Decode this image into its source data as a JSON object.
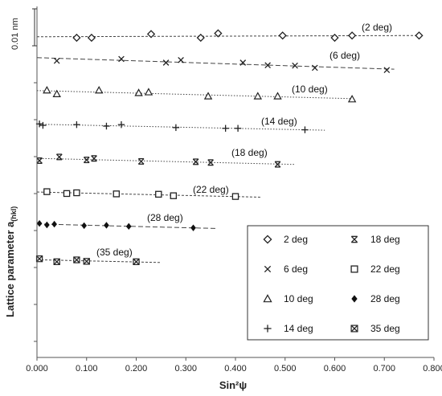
{
  "chart_data": {
    "type": "scatter",
    "xlabel": "Sin²ψ",
    "ylabel_main": "Lattice parameter a",
    "ylabel_sub": "(hkl)",
    "y_scale_label": "0.01 nm",
    "xlim": [
      0,
      0.8
    ],
    "x_ticks": [
      "0.000",
      "0.100",
      "0.200",
      "0.300",
      "0.400",
      "0.500",
      "0.600",
      "0.700",
      "0.800"
    ],
    "legend_position": "bottom-right",
    "series": [
      {
        "name": "2 deg",
        "label": "(2 deg)",
        "marker": "diamond",
        "line": "dashed-fine",
        "points": [
          [
            0.08,
            0
          ],
          [
            0.11,
            0
          ],
          [
            0.23,
            0.1
          ],
          [
            0.33,
            0
          ],
          [
            0.365,
            0.12
          ],
          [
            0.495,
            0.06
          ],
          [
            0.6,
            0
          ],
          [
            0.635,
            0.06
          ],
          [
            0.77,
            0.06
          ]
        ]
      },
      {
        "name": "6 deg",
        "label": "(6 deg)",
        "marker": "x",
        "line": "dashed",
        "points": [
          [
            0.04,
            0.05
          ],
          [
            0.17,
            0.1
          ],
          [
            0.26,
            0
          ],
          [
            0.29,
            0.07
          ],
          [
            0.415,
            0
          ],
          [
            0.465,
            -0.07
          ],
          [
            0.52,
            -0.08
          ],
          [
            0.56,
            -0.14
          ],
          [
            0.705,
            -0.2
          ]
        ]
      },
      {
        "name": "10 deg",
        "label": "(10 deg)",
        "marker": "triangle",
        "line": "dotted",
        "points": [
          [
            0.02,
            0.1
          ],
          [
            0.04,
            0
          ],
          [
            0.125,
            0.1
          ],
          [
            0.205,
            0.03
          ],
          [
            0.225,
            0.05
          ],
          [
            0.345,
            -0.06
          ],
          [
            0.445,
            -0.06
          ],
          [
            0.485,
            -0.06
          ],
          [
            0.635,
            -0.14
          ]
        ]
      },
      {
        "name": "14 deg",
        "label": "(14 deg)",
        "marker": "plus",
        "line": "dotted",
        "points": [
          [
            0.005,
            0.06
          ],
          [
            0.012,
            0.02
          ],
          [
            0.08,
            0.04
          ],
          [
            0.14,
            0
          ],
          [
            0.17,
            0.04
          ],
          [
            0.28,
            -0.04
          ],
          [
            0.38,
            -0.06
          ],
          [
            0.405,
            -0.06
          ],
          [
            0.54,
            -0.1
          ]
        ]
      },
      {
        "name": "18 deg",
        "label": "(18 deg)",
        "marker": "asterisk",
        "line": "dotted",
        "points": [
          [
            0.005,
            0
          ],
          [
            0.045,
            0.1
          ],
          [
            0.1,
            0.02
          ],
          [
            0.115,
            0.06
          ],
          [
            0.21,
            -0.02
          ],
          [
            0.32,
            -0.03
          ],
          [
            0.35,
            -0.05
          ],
          [
            0.485,
            -0.1
          ]
        ]
      },
      {
        "name": "22 deg",
        "label": "(22 deg)",
        "marker": "square",
        "line": "dashed-fine",
        "points": [
          [
            0.02,
            0.03
          ],
          [
            0.06,
            -0.02
          ],
          [
            0.08,
            0
          ],
          [
            0.16,
            -0.03
          ],
          [
            0.245,
            -0.04
          ],
          [
            0.275,
            -0.08
          ],
          [
            0.4,
            -0.1
          ]
        ]
      },
      {
        "name": "28 deg",
        "label": "(28 deg)",
        "marker": "filled-diamond",
        "line": "dashed",
        "points": [
          [
            0.005,
            0.04
          ],
          [
            0.02,
            0
          ],
          [
            0.035,
            0.02
          ],
          [
            0.095,
            -0.02
          ],
          [
            0.14,
            -0.01
          ],
          [
            0.185,
            -0.04
          ],
          [
            0.315,
            -0.08
          ]
        ]
      },
      {
        "name": "35 deg",
        "label": "(35 deg)",
        "marker": "boxed-x",
        "line": "dashed-fine",
        "points": [
          [
            0.005,
            0.04
          ],
          [
            0.04,
            -0.04
          ],
          [
            0.08,
            0.01
          ],
          [
            0.1,
            -0.03
          ],
          [
            0.2,
            -0.04
          ]
        ]
      }
    ]
  }
}
